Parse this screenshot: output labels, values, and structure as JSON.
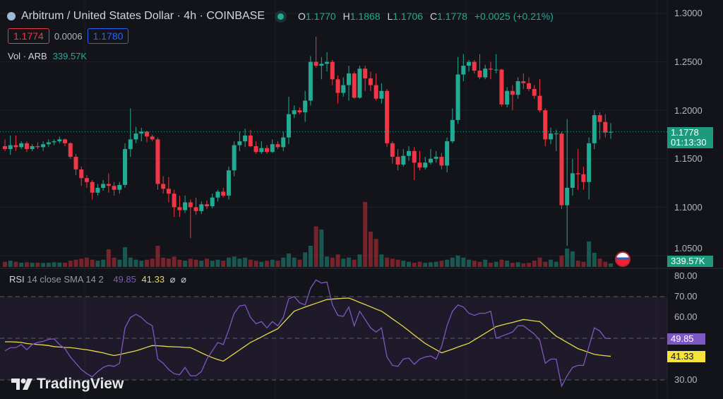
{
  "header": {
    "symbol_title": "Arbitrum / United States Dollar · 4h · COINBASE",
    "ohlc": {
      "o_label": "O",
      "o": "1.1770",
      "h_label": "H",
      "h": "1.1868",
      "l_label": "L",
      "l": "1.1706",
      "c_label": "C",
      "c": "1.1778",
      "change": "+0.0025 (+0.21%)"
    },
    "sell_price": "1.1774",
    "spread": "0.0006",
    "buy_price": "1.1780",
    "volume_label": "Vol · ARB",
    "volume_value": "339.57K"
  },
  "price_axis": {
    "ticks": [
      "1.3000",
      "1.2500",
      "1.2000",
      "1.1500",
      "1.1000",
      "1.0500"
    ],
    "last_price": "1.1778",
    "countdown": "01:13:30",
    "volume_tag": "339.57K"
  },
  "rsi_pane": {
    "label_name": "RSI",
    "label_params": "14 close SMA 14 2",
    "rsi_value": "49.85",
    "sma_value": "41.33",
    "hidden_icons": [
      "⌀",
      "⌀"
    ],
    "ticks": [
      "80.00",
      "70.00",
      "60.00",
      "30.00"
    ]
  },
  "logo": {
    "text": "TradingView"
  },
  "colors": {
    "up": "#22ab94",
    "down": "#f23645",
    "rsi": "#7e57c2",
    "sma": "#e8d74a",
    "background": "#131419"
  },
  "chart_data": [
    {
      "type": "candlestick",
      "title": "Arbitrum / United States Dollar · 4h · COINBASE",
      "ylim": [
        1.05,
        1.3
      ],
      "ohlc_format": [
        "open",
        "high",
        "low",
        "close"
      ],
      "candles": [
        [
          1.163,
          1.17,
          1.158,
          1.16
        ],
        [
          1.16,
          1.174,
          1.154,
          1.164
        ],
        [
          1.164,
          1.174,
          1.158,
          1.162
        ],
        [
          1.162,
          1.168,
          1.16,
          1.166
        ],
        [
          1.166,
          1.168,
          1.157,
          1.16
        ],
        [
          1.16,
          1.165,
          1.158,
          1.163
        ],
        [
          1.163,
          1.167,
          1.16,
          1.162
        ],
        [
          1.162,
          1.168,
          1.158,
          1.165
        ],
        [
          1.165,
          1.17,
          1.162,
          1.167
        ],
        [
          1.167,
          1.17,
          1.164,
          1.168
        ],
        [
          1.168,
          1.173,
          1.166,
          1.17
        ],
        [
          1.17,
          1.171,
          1.163,
          1.166
        ],
        [
          1.166,
          1.167,
          1.15,
          1.152
        ],
        [
          1.152,
          1.155,
          1.133,
          1.139
        ],
        [
          1.139,
          1.142,
          1.122,
          1.13
        ],
        [
          1.13,
          1.133,
          1.12,
          1.126
        ],
        [
          1.126,
          1.128,
          1.108,
          1.115
        ],
        [
          1.115,
          1.124,
          1.112,
          1.12
        ],
        [
          1.12,
          1.128,
          1.117,
          1.124
        ],
        [
          1.124,
          1.135,
          1.115,
          1.122
        ],
        [
          1.122,
          1.126,
          1.112,
          1.118
        ],
        [
          1.118,
          1.126,
          1.114,
          1.123
        ],
        [
          1.123,
          1.166,
          1.12,
          1.16
        ],
        [
          1.16,
          1.202,
          1.152,
          1.17
        ],
        [
          1.17,
          1.183,
          1.166,
          1.176
        ],
        [
          1.176,
          1.182,
          1.168,
          1.178
        ],
        [
          1.178,
          1.179,
          1.167,
          1.173
        ],
        [
          1.173,
          1.175,
          1.168,
          1.17
        ],
        [
          1.17,
          1.172,
          1.118,
          1.124
        ],
        [
          1.124,
          1.132,
          1.114,
          1.119
        ],
        [
          1.119,
          1.131,
          1.105,
          1.114
        ],
        [
          1.114,
          1.118,
          1.09,
          1.1
        ],
        [
          1.1,
          1.112,
          1.09,
          1.097
        ],
        [
          1.097,
          1.112,
          1.094,
          1.105
        ],
        [
          1.105,
          1.108,
          1.068,
          1.1
        ],
        [
          1.1,
          1.11,
          1.092,
          1.096
        ],
        [
          1.096,
          1.106,
          1.093,
          1.103
        ],
        [
          1.103,
          1.107,
          1.098,
          1.101
        ],
        [
          1.101,
          1.114,
          1.099,
          1.11
        ],
        [
          1.11,
          1.118,
          1.106,
          1.116
        ],
        [
          1.116,
          1.12,
          1.11,
          1.112
        ],
        [
          1.112,
          1.142,
          1.108,
          1.138
        ],
        [
          1.138,
          1.168,
          1.132,
          1.164
        ],
        [
          1.164,
          1.178,
          1.158,
          1.168
        ],
        [
          1.168,
          1.181,
          1.162,
          1.174
        ],
        [
          1.174,
          1.18,
          1.162,
          1.163
        ],
        [
          1.163,
          1.168,
          1.155,
          1.157
        ],
        [
          1.157,
          1.168,
          1.155,
          1.161
        ],
        [
          1.161,
          1.164,
          1.155,
          1.157
        ],
        [
          1.157,
          1.17,
          1.156,
          1.165
        ],
        [
          1.165,
          1.168,
          1.16,
          1.162
        ],
        [
          1.162,
          1.178,
          1.158,
          1.172
        ],
        [
          1.172,
          1.214,
          1.165,
          1.196
        ],
        [
          1.196,
          1.205,
          1.192,
          1.2
        ],
        [
          1.2,
          1.203,
          1.196,
          1.198
        ],
        [
          1.198,
          1.22,
          1.188,
          1.21
        ],
        [
          1.21,
          1.256,
          1.205,
          1.25
        ],
        [
          1.25,
          1.276,
          1.244,
          1.246
        ],
        [
          1.246,
          1.255,
          1.232,
          1.248
        ],
        [
          1.248,
          1.26,
          1.24,
          1.25
        ],
        [
          1.25,
          1.252,
          1.226,
          1.232
        ],
        [
          1.232,
          1.236,
          1.207,
          1.218
        ],
        [
          1.218,
          1.234,
          1.214,
          1.226
        ],
        [
          1.226,
          1.246,
          1.21,
          1.238
        ],
        [
          1.238,
          1.24,
          1.212,
          1.213
        ],
        [
          1.213,
          1.246,
          1.212,
          1.243
        ],
        [
          1.243,
          1.246,
          1.22,
          1.233
        ],
        [
          1.233,
          1.24,
          1.22,
          1.226
        ],
        [
          1.226,
          1.238,
          1.21,
          1.212
        ],
        [
          1.212,
          1.228,
          1.207,
          1.22
        ],
        [
          1.22,
          1.222,
          1.162,
          1.166
        ],
        [
          1.166,
          1.168,
          1.145,
          1.152
        ],
        [
          1.152,
          1.16,
          1.138,
          1.144
        ],
        [
          1.144,
          1.16,
          1.142,
          1.153
        ],
        [
          1.153,
          1.163,
          1.148,
          1.158
        ],
        [
          1.158,
          1.162,
          1.128,
          1.146
        ],
        [
          1.146,
          1.158,
          1.138,
          1.141
        ],
        [
          1.141,
          1.152,
          1.139,
          1.146
        ],
        [
          1.146,
          1.16,
          1.144,
          1.15
        ],
        [
          1.15,
          1.158,
          1.146,
          1.152
        ],
        [
          1.152,
          1.156,
          1.139,
          1.143
        ],
        [
          1.143,
          1.172,
          1.136,
          1.168
        ],
        [
          1.168,
          1.202,
          1.166,
          1.19
        ],
        [
          1.19,
          1.255,
          1.186,
          1.237
        ],
        [
          1.237,
          1.258,
          1.23,
          1.246
        ],
        [
          1.246,
          1.252,
          1.24,
          1.25
        ],
        [
          1.25,
          1.252,
          1.238,
          1.241
        ],
        [
          1.241,
          1.258,
          1.232,
          1.234
        ],
        [
          1.234,
          1.247,
          1.232,
          1.243
        ],
        [
          1.243,
          1.25,
          1.232,
          1.242
        ],
        [
          1.242,
          1.258,
          1.238,
          1.242
        ],
        [
          1.242,
          1.243,
          1.204,
          1.206
        ],
        [
          1.206,
          1.224,
          1.203,
          1.22
        ],
        [
          1.22,
          1.226,
          1.2,
          1.216
        ],
        [
          1.216,
          1.234,
          1.212,
          1.23
        ],
        [
          1.23,
          1.238,
          1.222,
          1.228
        ],
        [
          1.228,
          1.234,
          1.22,
          1.222
        ],
        [
          1.222,
          1.226,
          1.212,
          1.215
        ],
        [
          1.215,
          1.232,
          1.198,
          1.2
        ],
        [
          1.2,
          1.202,
          1.163,
          1.17
        ],
        [
          1.17,
          1.182,
          1.165,
          1.176
        ],
        [
          1.176,
          1.18,
          1.158,
          1.176
        ],
        [
          1.176,
          1.178,
          1.098,
          1.102
        ],
        [
          1.102,
          1.191,
          1.06,
          1.12
        ],
        [
          1.12,
          1.15,
          1.112,
          1.135
        ],
        [
          1.135,
          1.16,
          1.118,
          1.134
        ],
        [
          1.134,
          1.142,
          1.118,
          1.126
        ],
        [
          1.126,
          1.172,
          1.108,
          1.166
        ],
        [
          1.166,
          1.2,
          1.16,
          1.195
        ],
        [
          1.195,
          1.198,
          1.17,
          1.188
        ],
        [
          1.188,
          1.196,
          1.172,
          1.177
        ],
        [
          1.177,
          1.1868,
          1.1706,
          1.1778
        ]
      ],
      "volume_k": [
        500,
        600,
        500,
        400,
        450,
        400,
        420,
        380,
        400,
        450,
        420,
        400,
        600,
        700,
        800,
        900,
        700,
        600,
        700,
        1700,
        900,
        700,
        1900,
        900,
        700,
        600,
        700,
        800,
        2040,
        900,
        800,
        1000,
        700,
        600,
        800,
        700,
        600,
        800,
        600,
        700,
        600,
        900,
        1000,
        800,
        900,
        700,
        600,
        500,
        600,
        700,
        600,
        900,
        1300,
        900,
        700,
        1400,
        2040,
        3900,
        3600,
        1000,
        900,
        1200,
        800,
        900,
        700,
        1200,
        6260,
        3400,
        2700,
        1200,
        900,
        800,
        700,
        600,
        500,
        400,
        500,
        400,
        450,
        500,
        600,
        700,
        900,
        1100,
        900,
        700,
        600,
        500,
        700,
        400,
        500,
        700,
        600,
        400,
        450,
        350,
        400,
        600,
        900,
        500,
        700,
        500,
        1100,
        1770,
        1500,
        600,
        500,
        2450,
        1360,
        800,
        500,
        339.57
      ],
      "volume_last": "339.57K"
    },
    {
      "type": "line",
      "title": "RSI 14 close SMA 14 2",
      "ylim": [
        25,
        85
      ],
      "bands": {
        "upper": 70,
        "middle": 50,
        "lower": 30
      },
      "series": [
        {
          "name": "RSI",
          "values": [
            44,
            45.5,
            45.5,
            47,
            44.5,
            47,
            48,
            48.5,
            49.5,
            49.7,
            47,
            45,
            41,
            38,
            35,
            33,
            31.5,
            34,
            36,
            37,
            36.5,
            38,
            55,
            60,
            61.5,
            60,
            57.5,
            56,
            40,
            38,
            35,
            33,
            32.5,
            36,
            32,
            32,
            34,
            40,
            44,
            48,
            47,
            54,
            62,
            65.5,
            66,
            60,
            57,
            58,
            55,
            58,
            56,
            60,
            69,
            70,
            67,
            66,
            74,
            78,
            76.5,
            77,
            66,
            61,
            60.5,
            65,
            56,
            63,
            59,
            55,
            53,
            55,
            41,
            37,
            36.5,
            40,
            40.5,
            37.5,
            40,
            41,
            41.5,
            40,
            46,
            56,
            63,
            66,
            65,
            62,
            61,
            62,
            62,
            63,
            50,
            51,
            52,
            53,
            56,
            56,
            54,
            52,
            49,
            38,
            40,
            40,
            27,
            32,
            36,
            37,
            37,
            46,
            55,
            53.5,
            50,
            49.85
          ]
        },
        {
          "name": "SMA",
          "values": [
            48.3,
            48.3,
            48.2,
            48,
            47.5,
            47.2,
            47,
            46.8,
            46.5,
            46,
            45.8,
            45.6,
            45.5,
            45.2,
            44.8,
            44.5,
            44,
            43.5,
            43,
            42.3,
            41.7,
            42.2,
            42.8,
            43.4,
            44,
            44.8,
            45.7,
            46.5,
            46.4,
            46.2,
            46,
            45.9,
            45.8,
            45.6,
            45.5,
            44.3,
            43,
            41.8,
            40.7,
            39.8,
            39,
            40.8,
            42.6,
            44.4,
            46.2,
            48,
            49.3,
            50.6,
            52,
            53.3,
            54.6,
            57.4,
            60.2,
            63,
            64,
            65,
            65.9,
            66.8,
            67.7,
            68.6,
            68.8,
            69,
            69.2,
            69.3,
            68.3,
            67.2,
            66.2,
            65.1,
            64,
            63,
            61.2,
            59.3,
            57.5,
            55.6,
            53.6,
            51.5,
            49.5,
            47.5,
            46,
            44.5,
            43,
            43.9,
            44.8,
            45.8,
            46.7,
            47.6,
            49.2,
            50.8,
            52.4,
            54,
            55.6,
            56.3,
            57,
            57.6,
            58.3,
            59,
            58.7,
            58.3,
            58,
            55.7,
            53.3,
            51,
            49.5,
            48,
            46.5,
            45,
            44.1,
            43.2,
            42.3,
            41.9,
            41.6,
            41.33
          ]
        }
      ]
    }
  ]
}
